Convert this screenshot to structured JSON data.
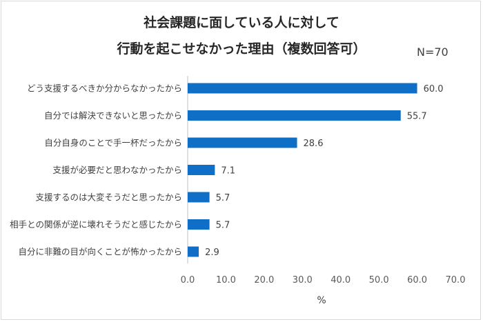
{
  "chart_data": {
    "type": "bar",
    "orientation": "horizontal",
    "title_lines": [
      "社会課題に面している人に対して",
      "行動を起こせなかった理由（複数回答可）"
    ],
    "sample_size": "N=70",
    "categories": [
      "どう支援するべきか分からなかったから",
      "自分では解決できないと思ったから",
      "自分自身のことで手一杯だったから",
      "支援が必要だと思わなかったから",
      "支援するのは大変そうだと思ったから",
      "相手との関係が逆に壊れそうだと感じたから",
      "自分に非難の目が向くことが怖かったから"
    ],
    "values": [
      60.0,
      55.7,
      28.6,
      7.1,
      5.7,
      5.7,
      2.9
    ],
    "value_labels": [
      "60.0",
      "55.7",
      "28.6",
      "7.1",
      "5.7",
      "5.7",
      "2.9"
    ],
    "xlim": [
      0,
      70
    ],
    "xticks": [
      0,
      10,
      20,
      30,
      40,
      50,
      60,
      70
    ],
    "xtick_labels": [
      "0.0",
      "10.0",
      "20.0",
      "30.0",
      "40.0",
      "50.0",
      "60.0",
      "70.0"
    ],
    "xlabel": "%",
    "bar_color": "#0f6fc6",
    "grid": false,
    "legend": "none"
  }
}
